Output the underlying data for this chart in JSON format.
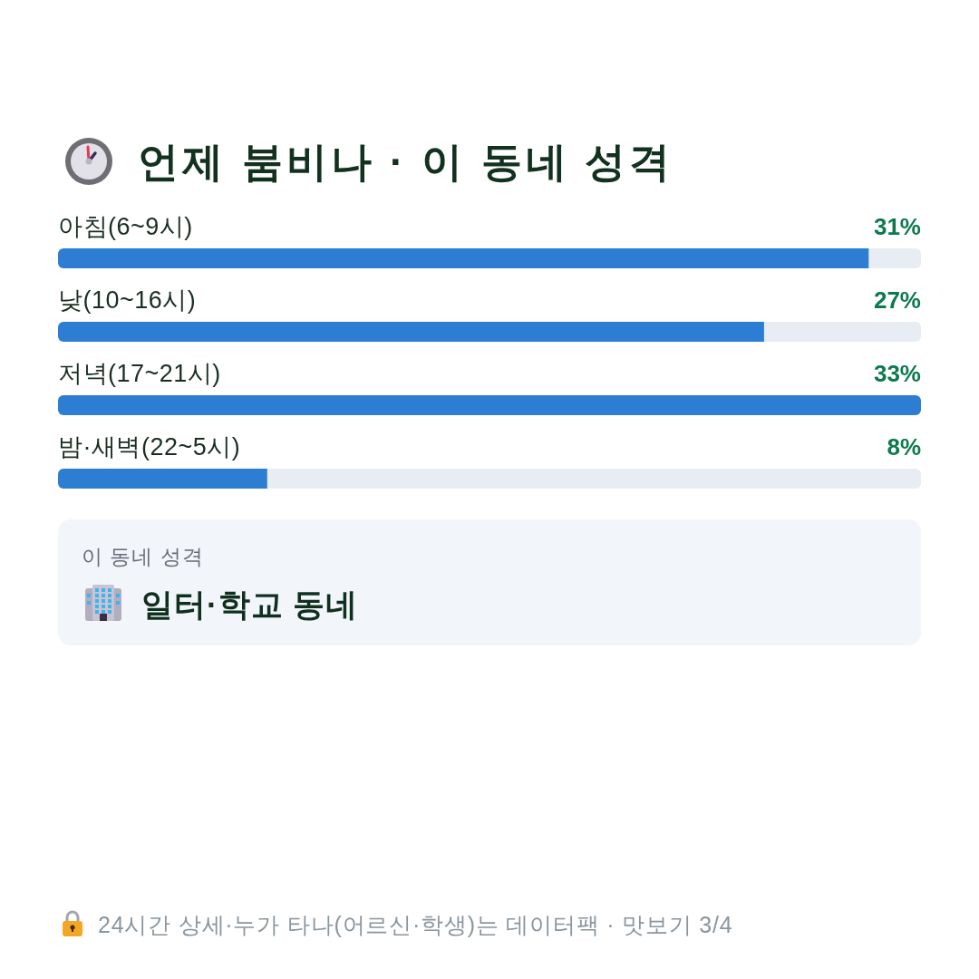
{
  "chart_data": {
    "type": "bar",
    "orientation": "horizontal",
    "title": "언제 붐비나 · 이 동네 성격",
    "categories": [
      "아침(6~9시)",
      "낮(10~16시)",
      "저녁(17~21시)",
      "밤·새벽(22~5시)"
    ],
    "values": [
      31,
      27,
      33,
      8
    ],
    "color": "#2d7dd2",
    "value_labels": [
      "31%",
      "27%",
      "33%",
      "8%"
    ],
    "tick_labels": "y",
    "annotations": [
      "이 동네 성격",
      "일터·학교 동네",
      "24시간 상세·누가 타나(어르신·학생)는 데이터팩 · 맛보기 3/4"
    ]
  }
}
